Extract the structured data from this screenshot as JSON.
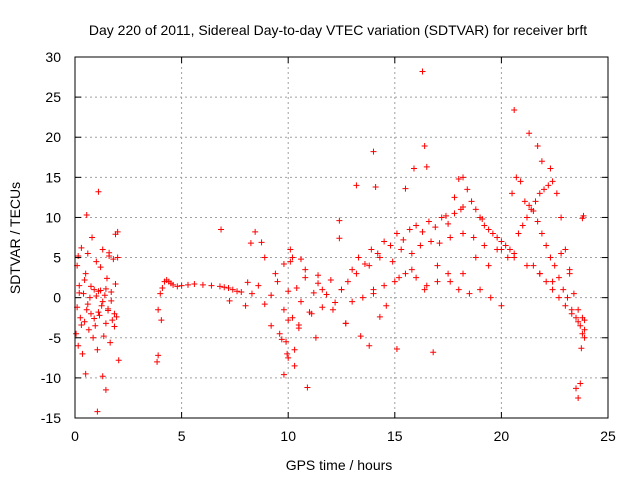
{
  "chart_data": {
    "type": "scatter",
    "title": "Day 220 of 2011, Sidereal Day-to-day VTEC variation (SDTVAR) for receiver brft",
    "xlabel": "GPS time / hours",
    "ylabel": "SDTVAR / TECUs",
    "xlim": [
      0,
      25
    ],
    "ylim": [
      -15,
      30
    ],
    "xticks": [
      0,
      5,
      10,
      15,
      20,
      25
    ],
    "yticks": [
      -15,
      -10,
      -5,
      0,
      5,
      10,
      15,
      20,
      25,
      30
    ],
    "xtick_labels": [
      "0",
      "5",
      "10",
      "15",
      "20",
      "25"
    ],
    "ytick_labels": [
      "-15",
      "-10",
      "-5",
      "0",
      "5",
      "10",
      "15",
      "20",
      "25",
      "30"
    ],
    "grid": true,
    "marker": "+",
    "color": "#ff0000",
    "series": [
      {
        "name": "SDTVAR",
        "x": [
          0.05,
          0.1,
          0.15,
          0.2,
          0.25,
          0.3,
          0.35,
          0.4,
          0.45,
          0.5,
          0.55,
          0.6,
          0.65,
          0.7,
          0.75,
          0.8,
          0.85,
          0.9,
          0.95,
          1.0,
          1.05,
          1.1,
          1.15,
          1.2,
          1.25,
          1.3,
          1.35,
          1.4,
          1.45,
          1.5,
          1.55,
          1.6,
          1.65,
          1.7,
          1.75,
          1.8,
          1.85,
          1.9,
          1.95,
          2.0,
          0.1,
          0.2,
          0.3,
          0.45,
          0.6,
          0.75,
          0.9,
          1.0,
          1.1,
          1.2,
          1.3,
          1.45,
          1.55,
          1.7,
          1.85,
          2.0,
          0.5,
          1.05,
          1.1,
          1.6,
          1.45,
          0.55,
          1.3,
          2.05,
          0.15,
          1.9,
          3.9,
          4.0,
          4.1,
          4.2,
          4.3,
          4.4,
          4.5,
          4.6,
          4.8,
          5.0,
          5.3,
          5.6,
          6.0,
          6.4,
          6.8,
          7.0,
          7.2,
          7.4,
          7.6,
          7.8,
          3.85,
          3.9,
          4.05,
          6.85,
          8.25,
          8.45,
          8.75,
          8.9,
          7.25,
          8.1,
          8.0,
          8.3,
          8.6,
          8.9,
          9.2,
          9.5,
          9.8,
          10.0,
          10.2,
          10.4,
          10.6,
          10.8,
          11.0,
          11.2,
          11.4,
          11.6,
          11.8,
          12.0,
          12.2,
          12.5,
          9.2,
          9.4,
          9.6,
          9.8,
          10.0,
          10.2,
          10.5,
          10.8,
          11.1,
          11.4,
          9.9,
          10.1,
          10.3,
          10.6,
          9.95,
          9.8,
          10.0,
          9.7,
          10.1,
          10.3,
          10.5,
          10.9,
          11.3,
          11.6,
          12.1,
          12.4,
          12.7,
          12.5,
          12.8,
          13.0,
          13.3,
          13.6,
          13.9,
          14.2,
          14.5,
          14.8,
          15.1,
          15.4,
          15.7,
          16.0,
          16.3,
          16.6,
          16.9,
          17.2,
          17.5,
          17.8,
          18.1,
          13.0,
          13.5,
          14.0,
          14.5,
          15.0,
          15.5,
          16.0,
          16.5,
          17.0,
          17.5,
          18.0,
          18.5,
          19.0,
          19.5,
          20.0,
          13.2,
          13.8,
          14.3,
          14.9,
          15.3,
          15.8,
          16.2,
          16.7,
          17.1,
          17.6,
          18.2,
          18.7,
          19.2,
          19.8,
          20.3,
          14.0,
          14.6,
          15.2,
          15.8,
          16.4,
          17.0,
          17.6,
          18.2,
          18.8,
          19.4,
          20.0,
          20.6,
          21.2,
          21.8,
          22.4,
          17.8,
          18.0,
          18.2,
          18.4,
          18.6,
          18.8,
          19.0,
          19.2,
          19.4,
          19.6,
          19.8,
          20.0,
          20.2,
          20.4,
          20.6,
          16.3,
          16.4,
          15.9,
          14.0,
          13.2,
          14.1,
          15.5,
          16.5,
          17.4,
          16.8,
          12.7,
          13.8,
          15.1,
          14.3,
          13.4,
          18.2,
          19.1,
          12.4,
          20.5,
          20.7,
          20.9,
          21.1,
          21.3,
          21.5,
          21.7,
          21.9,
          22.1,
          22.3,
          22.5,
          22.7,
          22.9,
          23.1,
          23.3,
          23.5,
          23.7,
          23.9,
          20.8,
          21.0,
          21.2,
          21.4,
          21.6,
          21.8,
          22.0,
          22.2,
          22.4,
          22.6,
          22.8,
          23.0,
          23.2,
          23.4,
          23.6,
          23.8,
          21.5,
          21.8,
          22.1,
          22.4,
          22.7,
          23.0,
          23.3,
          23.6,
          23.8,
          23.9,
          20.6,
          21.3,
          21.7,
          21.9,
          22.3,
          23.8,
          23.85,
          23.7,
          23.6,
          23.5,
          23.9,
          23.75,
          22.8,
          23.2
        ],
        "y": [
          -4.5,
          4.0,
          -6.0,
          1.5,
          -2.5,
          6.2,
          -7.0,
          0.5,
          -3.0,
          3.0,
          -1.5,
          5.5,
          -4.0,
          0.0,
          -2.0,
          7.5,
          -5.0,
          1.0,
          -3.5,
          4.5,
          -6.5,
          0.8,
          -2.2,
          3.8,
          -1.0,
          6.0,
          -4.8,
          0.3,
          -3.2,
          2.4,
          -1.6,
          5.2,
          -5.6,
          -0.4,
          -2.8,
          4.8,
          -3.6,
          1.7,
          -2.4,
          5.0,
          -1.2,
          0.6,
          -3.4,
          2.2,
          -0.8,
          1.4,
          -2.6,
          0.2,
          -1.8,
          0.9,
          -0.5,
          1.1,
          -1.4,
          0.7,
          -2.0,
          8.2,
          -9.5,
          -14.2,
          13.2,
          5.6,
          -11.5,
          10.3,
          -9.8,
          -7.8,
          5.2,
          7.9,
          -1.5,
          0.5,
          1.2,
          2.0,
          2.2,
          2.0,
          1.8,
          1.6,
          1.4,
          1.5,
          1.6,
          1.7,
          1.6,
          1.5,
          1.4,
          1.3,
          1.2,
          1.0,
          0.8,
          0.7,
          -8.0,
          -7.2,
          -2.8,
          8.5,
          6.8,
          8.2,
          6.9,
          5.0,
          -0.4,
          1.9,
          -1.0,
          0.5,
          1.5,
          -0.8,
          0.3,
          2.0,
          -1.5,
          0.8,
          -2.5,
          1.2,
          -0.5,
          2.5,
          -1.8,
          0.6,
          1.8,
          -1.2,
          0.4,
          2.2,
          -0.6,
          1.0,
          -3.5,
          3.0,
          -4.5,
          4.2,
          -2.8,
          5.0,
          -3.8,
          3.5,
          -2.0,
          2.8,
          -5.5,
          6.0,
          -6.5,
          4.8,
          -7.0,
          -9.6,
          -7.5,
          -5.2,
          4.5,
          -8.5,
          -3.4,
          -11.2,
          -5.0,
          1.0,
          -1.5,
          7.4,
          -3.2,
          1.0,
          2.0,
          3.5,
          5.0,
          4.2,
          6.0,
          5.5,
          7.0,
          6.5,
          8.0,
          7.2,
          8.5,
          9.0,
          8.2,
          9.5,
          8.8,
          10.0,
          9.2,
          10.5,
          11.0,
          -0.5,
          0.0,
          1.0,
          1.5,
          2.0,
          3.0,
          2.5,
          1.5,
          2.0,
          3.0,
          1.0,
          0.5,
          1.0,
          0.0,
          -1.0,
          3.0,
          4.0,
          5.0,
          4.5,
          6.0,
          5.5,
          6.5,
          7.0,
          6.8,
          7.5,
          8.0,
          7.5,
          6.5,
          6.0,
          5.0,
          0.5,
          -1.0,
          2.5,
          3.5,
          1.0,
          4.0,
          2.0,
          3.0,
          5.0,
          4.0,
          6.0,
          5.0,
          4.0,
          3.0,
          2.0,
          12.5,
          14.8,
          15.0,
          13.5,
          12.0,
          11.0,
          10.0,
          9.0,
          8.5,
          8.0,
          7.5,
          7.0,
          6.5,
          6.0,
          5.5,
          28.2,
          18.9,
          16.1,
          18.2,
          14.0,
          13.8,
          13.6,
          16.3,
          10.2,
          -6.8,
          -3.2,
          -6.0,
          -6.4,
          -2.4,
          -4.8,
          11.3,
          9.8,
          9.6,
          13.0,
          15.0,
          14.5,
          12.0,
          11.5,
          10.8,
          9.5,
          8.0,
          6.5,
          5.0,
          4.0,
          2.5,
          1.0,
          0.0,
          -1.5,
          -2.5,
          -3.5,
          -4.0,
          8.0,
          9.0,
          10.0,
          11.0,
          12.0,
          13.0,
          13.5,
          14.0,
          14.5,
          13.0,
          10.0,
          6.0,
          3.0,
          0.5,
          -1.5,
          -2.5,
          4.0,
          3.0,
          2.0,
          1.0,
          0.0,
          -1.0,
          -2.0,
          -3.0,
          -4.5,
          -2.8,
          23.4,
          20.5,
          18.9,
          17.0,
          16.1,
          9.9,
          10.2,
          -10.7,
          -12.5,
          -11.3,
          -5.0,
          -6.3,
          5.5,
          3.5
        ]
      }
    ]
  }
}
